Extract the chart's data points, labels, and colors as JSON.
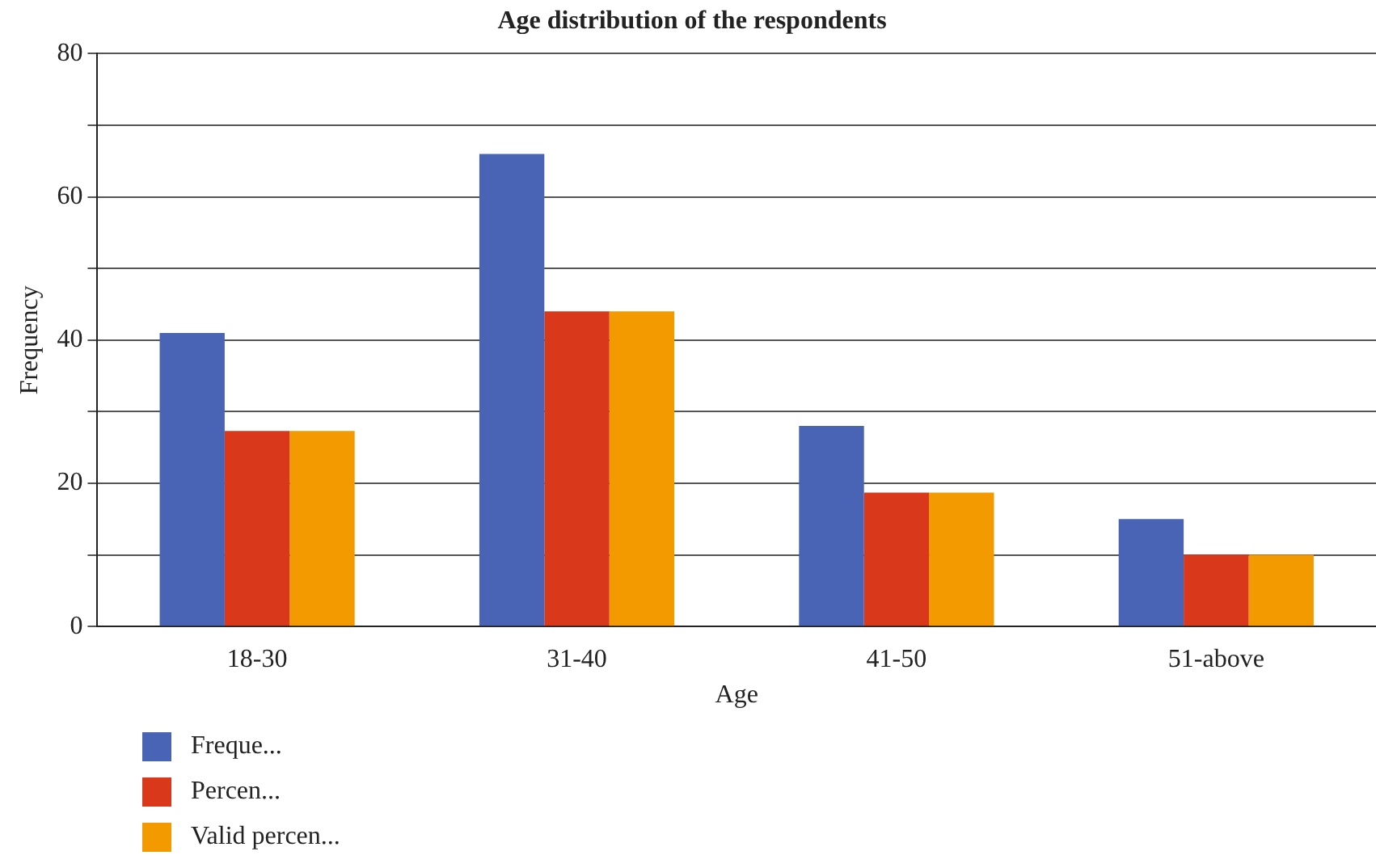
{
  "chart_data": {
    "type": "bar",
    "title": "Age distribution of the respondents",
    "xlabel": "Age",
    "ylabel": "Frequency",
    "categories": [
      "18-30",
      "31-40",
      "41-50",
      "51-above"
    ],
    "series": [
      {
        "name": "Freque...",
        "color": "#4a64b5",
        "values": [
          41,
          66,
          28,
          15
        ]
      },
      {
        "name": "Percen...",
        "color": "#d9381a",
        "values": [
          27.3,
          44,
          18.7,
          10
        ]
      },
      {
        "name": "Valid percen...",
        "color": "#f39a00",
        "values": [
          27.3,
          44,
          18.7,
          10
        ]
      }
    ],
    "ylim": [
      0,
      80
    ],
    "yticks": [
      0,
      {
        "value": 10,
        "label": null
      },
      20,
      {
        "value": 30,
        "label": null
      },
      40,
      {
        "value": 50,
        "label": null
      },
      60,
      {
        "value": 70,
        "label": null
      },
      80
    ],
    "grid": "y",
    "legend": "bottom left"
  }
}
